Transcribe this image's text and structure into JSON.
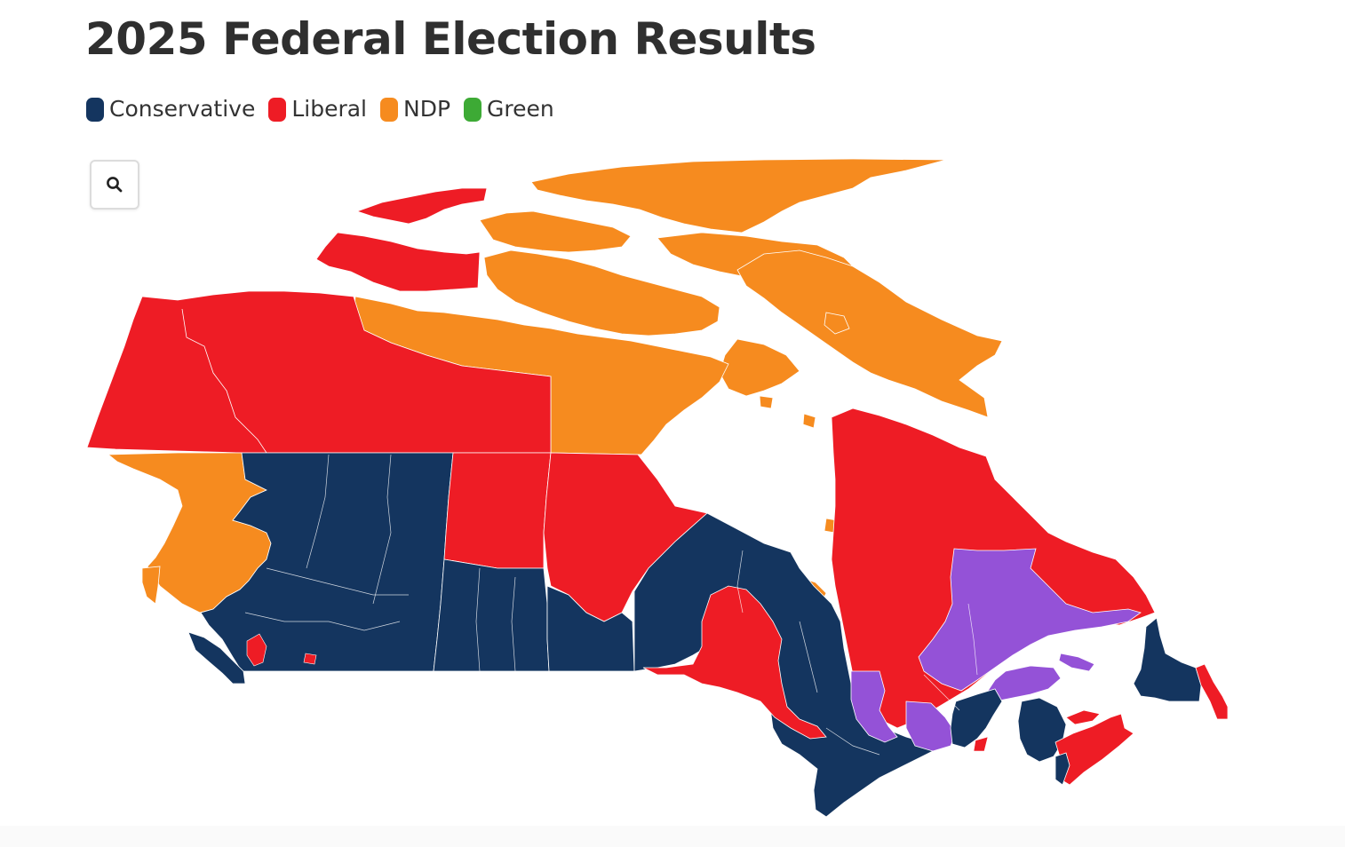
{
  "header": {
    "title": "2025 Federal Election Results"
  },
  "legend": {
    "items": [
      {
        "label": "Conservative",
        "color": "#14355f"
      },
      {
        "label": "Liberal",
        "color": "#ee1c25"
      },
      {
        "label": "NDP",
        "color": "#f68b1f"
      },
      {
        "label": "Green",
        "color": "#3daa35"
      }
    ]
  },
  "map_colors": {
    "conservative": "#14355f",
    "liberal": "#ee1c25",
    "ndp": "#f68b1f",
    "bloc": "#9452d7",
    "water": "#ffffff"
  },
  "controls": {
    "search_icon": "search-icon"
  }
}
